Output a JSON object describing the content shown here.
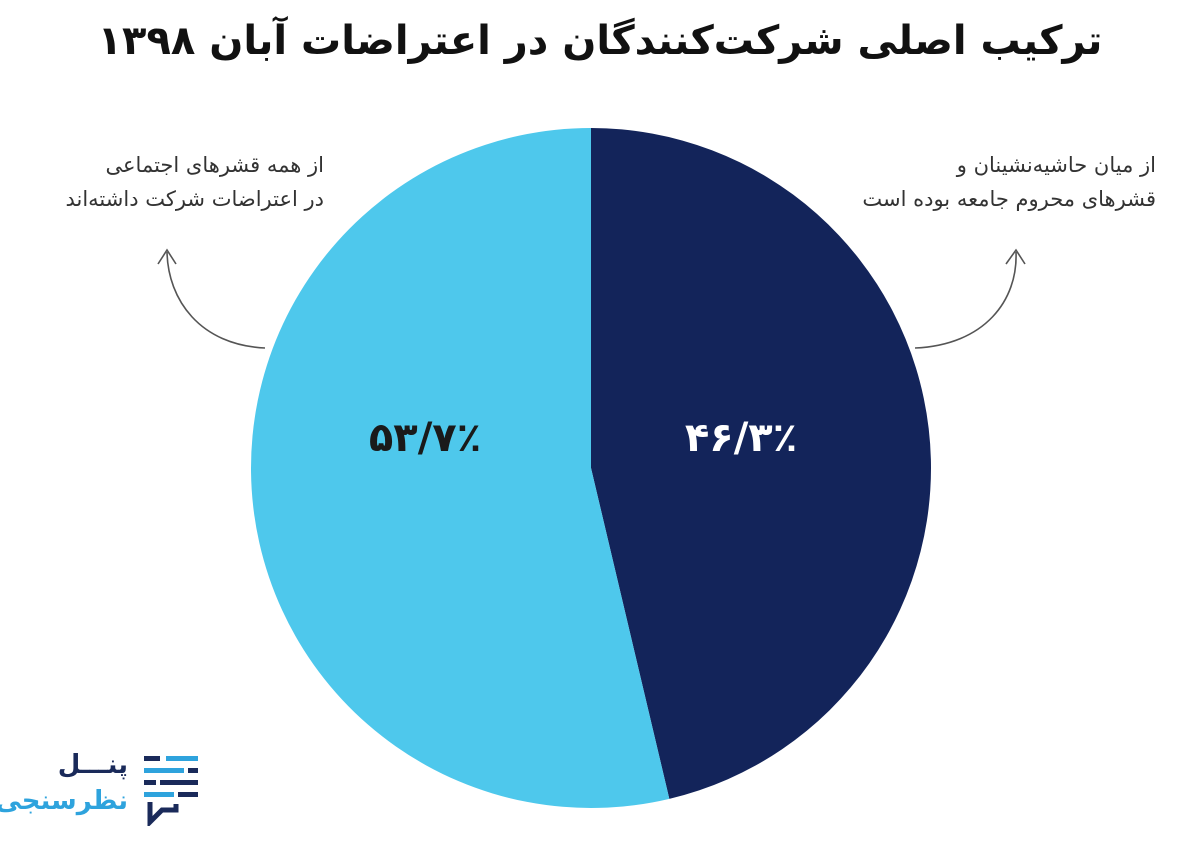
{
  "title": "ترکیب اصلی شرکت‌کنندگان در اعتراضات آبان ۱۳۹۸",
  "chart_data": {
    "type": "pie",
    "title": "ترکیب اصلی شرکت‌کنندگان در اعتراضات آبان ۱۳۹۸",
    "slices": [
      {
        "label": "۴۶/۳٪",
        "value": 46.3,
        "color": "#13245a",
        "label_color": "#ffffff",
        "description": "از میان حاشیه‌نشینان و قشرهای محروم جامعه بوده است"
      },
      {
        "label": "۵۳/۷٪",
        "value": 53.7,
        "color": "#4ec8ec",
        "label_color": "#1a1a1a",
        "description": "از همه قشرهای اجتماعی در اعتراضات شرکت داشته‌اند"
      }
    ],
    "start_angle": "12 o'clock",
    "direction": "clockwise"
  },
  "annotations": {
    "right": {
      "line1": "از میان حاشیه‌نشینان و",
      "line2": "قشرهای محروم جامعه بوده است"
    },
    "left": {
      "line1": "از همه قشرهای اجتماعی",
      "line2": "در اعتراضات شرکت داشته‌اند"
    }
  },
  "logo": {
    "line1": "پنـــل",
    "line2": "نظرسنجی",
    "colors": {
      "dark": "#1a2a5a",
      "light": "#2ea3dd"
    },
    "icon": "chat-bubble-lines-icon"
  }
}
